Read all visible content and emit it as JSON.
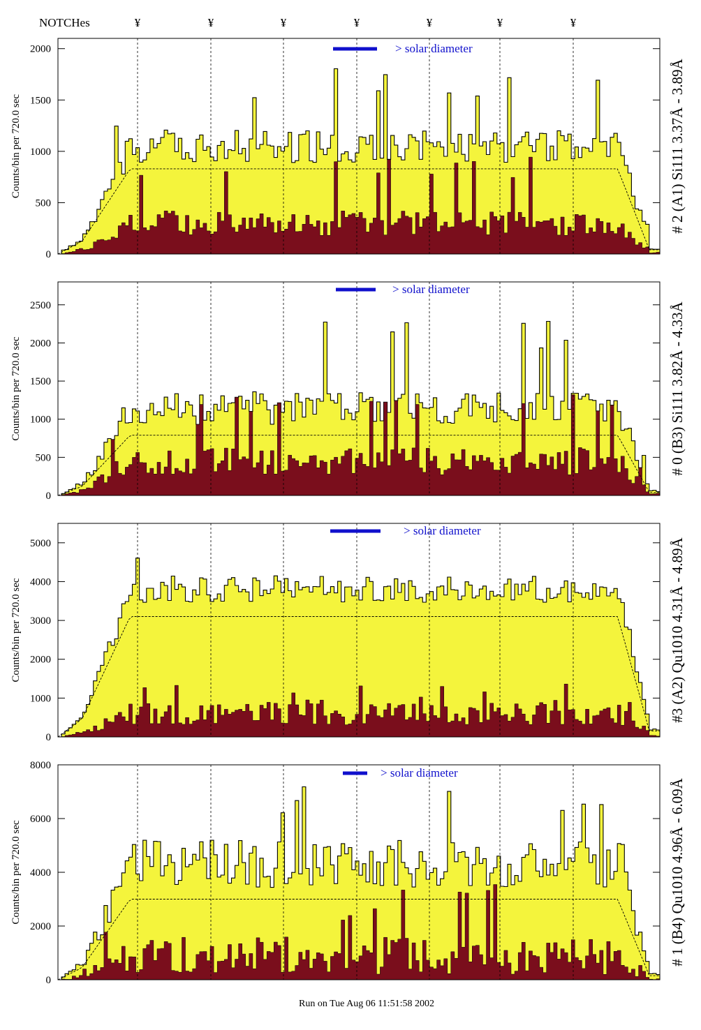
{
  "header": {
    "notches_label": "NOTCHes",
    "notch_symbol": "¥",
    "notch_count": 7
  },
  "footer": {
    "run_label": "Run on Tue Aug 06 11:51:58 2002"
  },
  "colors": {
    "total": "#f4f43c",
    "component": "#7a0e1c",
    "model": "#000000",
    "solar": "#1010cc",
    "annotation_blue": "#2a2ad0"
  },
  "chart_data": [
    {
      "type": "area",
      "label": "# 2 (A1) Si111  3.37Å - 3.89Å",
      "ylabel": "Counts/bin per",
      "ylabel2": "720.0 sec",
      "yticks": [
        0,
        500,
        1000,
        1500,
        2000
      ],
      "ylim": [
        0,
        2100
      ],
      "solar_label": "> solar diameter",
      "series": [
        {
          "name": "total",
          "profile": {
            "plateau": 1050,
            "noise": 160,
            "peak_level": 1940,
            "rise": 0.08,
            "fall": 0.95
          }
        },
        {
          "name": "component",
          "profile": {
            "plateau": 300,
            "noise": 120,
            "peak_level": 1100
          }
        },
        {
          "name": "model",
          "profile": {
            "plateau": 830
          }
        }
      ]
    },
    {
      "type": "area",
      "label": "# 0 (B3) Si111  3.82Å - 4.33Å",
      "ylabel": "Counts/bin per",
      "ylabel2": "720.0 sec",
      "yticks": [
        0,
        500,
        1000,
        1500,
        2000,
        2500
      ],
      "ylim": [
        0,
        2800
      ],
      "solar_label": "> solar diameter",
      "series": [
        {
          "name": "total",
          "profile": {
            "plateau": 1150,
            "noise": 220,
            "peak_level": 2580
          }
        },
        {
          "name": "component",
          "profile": {
            "plateau": 450,
            "noise": 180,
            "peak_level": 1730
          }
        },
        {
          "name": "model",
          "profile": {
            "plateau": 790
          }
        }
      ]
    },
    {
      "type": "area",
      "label": "#3 (A2) Qu1010  4.31Å - 4.89Å",
      "ylabel": "Counts/bin per",
      "ylabel2": "720.0 sec",
      "yticks": [
        0,
        1000,
        2000,
        3000,
        4000,
        5000
      ],
      "ylim": [
        0,
        5500
      ],
      "solar_label": "> solar diameter",
      "series": [
        {
          "name": "total",
          "profile": {
            "plateau": 3800,
            "noise": 350,
            "peak_level": 5100
          }
        },
        {
          "name": "component",
          "profile": {
            "plateau": 600,
            "noise": 300,
            "peak_level": 1500
          }
        },
        {
          "name": "model",
          "profile": {
            "plateau": 3100
          }
        }
      ]
    },
    {
      "type": "area",
      "label": "# 1 (B4) Qu1010 4.96Å - 6.09Å",
      "ylabel": "Counts/bin per",
      "ylabel2": "720.0 sec",
      "yticks": [
        0,
        2000,
        4000,
        6000,
        8000
      ],
      "ylim": [
        0,
        8000
      ],
      "solar_label": "> solar diameter",
      "series": [
        {
          "name": "total",
          "profile": {
            "plateau": 4300,
            "noise": 900,
            "peak_level": 7300
          }
        },
        {
          "name": "component",
          "profile": {
            "plateau": 900,
            "noise": 700,
            "peak_level": 3700
          }
        },
        {
          "name": "model",
          "profile": {
            "plateau": 3000
          }
        }
      ]
    }
  ]
}
